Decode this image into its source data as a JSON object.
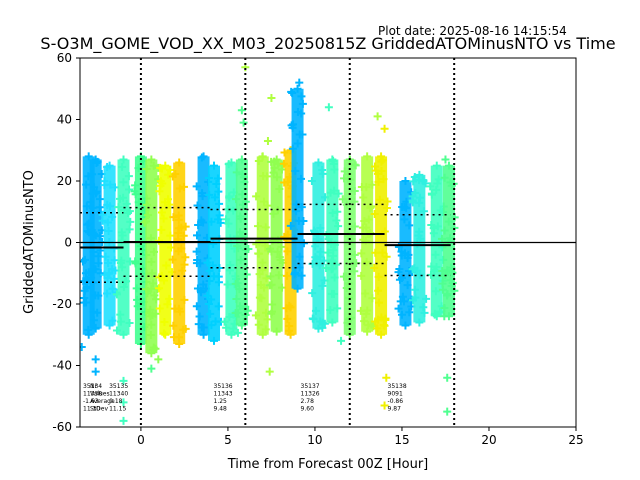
{
  "figure": {
    "plot_date": "Plot date: 2025-08-16 14:15:54",
    "title": "S-O3M_GOME_VOD_XX_M03_20250815Z GriddedATOMinusNTO vs Time",
    "xlabel": "Time from Forecast 00Z [Hour]",
    "ylabel": "GriddedATOMinusNTO"
  },
  "stats_header": [
    "Nr",
    "Values",
    "Average",
    "StDev"
  ],
  "chart_data": {
    "type": "scatter",
    "marker": "+",
    "title": "S-O3M_GOME_VOD_XX_M03_20250815Z GriddedATOMinusNTO vs Time",
    "xlabel": "Time from Forecast 00Z [Hour]",
    "ylabel": "GriddedATOMinusNTO",
    "xlim": [
      -3.5,
      25
    ],
    "ylim": [
      -60,
      60
    ],
    "xticks": [
      0,
      5,
      10,
      15,
      20,
      25
    ],
    "yticks": [
      -60,
      -40,
      -20,
      0,
      20,
      40,
      60
    ],
    "grid": false,
    "zero_line": 0,
    "vlines_dotted": [
      0,
      6,
      12,
      18
    ],
    "orbits": [
      {
        "x": -3.5,
        "nr": "35134",
        "values": "11338",
        "average": "-1.63",
        "stdev": "11.30",
        "mean_x": [
          -3.5,
          -1.0
        ],
        "mean": -1.63
      },
      {
        "x": -2.0,
        "nr": "35135",
        "values": "11340",
        "average": "0.18",
        "stdev": "11.15",
        "mean_x": [
          -1.0,
          4.0
        ],
        "mean": 0.18
      },
      {
        "x": 4.0,
        "nr": "35136",
        "values": "11343",
        "average": "1.25",
        "stdev": "9.48",
        "mean_x": [
          4.0,
          9.0
        ],
        "mean": 1.25
      },
      {
        "x": 9.0,
        "nr": "35137",
        "values": "11326",
        "average": "2.78",
        "stdev": "9.60",
        "mean_x": [
          9.0,
          14.0
        ],
        "mean": 2.78
      },
      {
        "x": 14.0,
        "nr": "35138",
        "values": "9091",
        "average": "-0.86",
        "stdev": "9.87",
        "mean_x": [
          14.0,
          17.8
        ],
        "mean": -0.86
      }
    ],
    "clusters": [
      {
        "x": -3.0,
        "low": -30,
        "high": 28,
        "color": "#00b4ff"
      },
      {
        "x": -2.6,
        "low": -28,
        "high": 27,
        "color": "#00b4ff"
      },
      {
        "x": -1.8,
        "low": -27,
        "high": 25,
        "color": "#20e0ff"
      },
      {
        "x": -1.0,
        "low": -30,
        "high": 27,
        "color": "#40ffc0"
      },
      {
        "x": 0.0,
        "low": -33,
        "high": 28,
        "color": "#40ff90"
      },
      {
        "x": 0.6,
        "low": -36,
        "high": 27,
        "color": "#90ff50"
      },
      {
        "x": 1.4,
        "low": -30,
        "high": 25,
        "color": "#f0ff00"
      },
      {
        "x": 2.2,
        "low": -33,
        "high": 26,
        "color": "#ffd000"
      },
      {
        "x": 3.6,
        "low": -30,
        "high": 28,
        "color": "#00b4ff"
      },
      {
        "x": 4.2,
        "low": -32,
        "high": 25,
        "color": "#00d0ff"
      },
      {
        "x": 5.2,
        "low": -30,
        "high": 26,
        "color": "#40ffc0"
      },
      {
        "x": 5.8,
        "low": -27,
        "high": 27,
        "color": "#50ff90"
      },
      {
        "x": 7.0,
        "low": -30,
        "high": 28,
        "color": "#b0ff40"
      },
      {
        "x": 7.8,
        "low": -29,
        "high": 27,
        "color": "#90ff50"
      },
      {
        "x": 8.6,
        "low": -30,
        "high": 30,
        "color": "#ffd000"
      },
      {
        "x": 9.0,
        "low": -15,
        "high": 50,
        "color": "#00b4ff"
      },
      {
        "x": 10.2,
        "low": -28,
        "high": 26,
        "color": "#30f0e0"
      },
      {
        "x": 11.0,
        "low": -26,
        "high": 27,
        "color": "#40ffc0"
      },
      {
        "x": 12.0,
        "low": -30,
        "high": 27,
        "color": "#80ff70"
      },
      {
        "x": 13.0,
        "low": -29,
        "high": 28,
        "color": "#b0ff40"
      },
      {
        "x": 13.8,
        "low": -30,
        "high": 28,
        "color": "#f0f000"
      },
      {
        "x": 15.2,
        "low": -27,
        "high": 20,
        "color": "#00b4ff"
      },
      {
        "x": 16.0,
        "low": -26,
        "high": 22,
        "color": "#30f0e0"
      },
      {
        "x": 17.0,
        "low": -24,
        "high": 25,
        "color": "#40ffc0"
      },
      {
        "x": 17.7,
        "low": -24,
        "high": 25,
        "color": "#50ff90"
      }
    ],
    "outliers": [
      {
        "x": 6.0,
        "y": 57,
        "color": "#b0ff40"
      },
      {
        "x": 5.8,
        "y": 43,
        "color": "#50ff90"
      },
      {
        "x": 5.9,
        "y": 39,
        "color": "#50ff90"
      },
      {
        "x": 7.5,
        "y": 47,
        "color": "#b0ff40"
      },
      {
        "x": 7.3,
        "y": 33,
        "color": "#b0ff40"
      },
      {
        "x": 9.1,
        "y": 52,
        "color": "#00b4ff"
      },
      {
        "x": 10.8,
        "y": 44,
        "color": "#40ffc0"
      },
      {
        "x": 13.6,
        "y": 41,
        "color": "#b0ff40"
      },
      {
        "x": 14.0,
        "y": 37,
        "color": "#f0f000"
      },
      {
        "x": 17.5,
        "y": 27,
        "color": "#50ff90"
      },
      {
        "x": 7.4,
        "y": -42,
        "color": "#b0ff40"
      },
      {
        "x": 0.6,
        "y": -41,
        "color": "#50ff90"
      },
      {
        "x": 14.0,
        "y": -53,
        "color": "#f0f000"
      },
      {
        "x": 17.6,
        "y": -55,
        "color": "#50ff90"
      },
      {
        "x": -3.4,
        "y": -34,
        "color": "#00b4ff"
      },
      {
        "x": 17.6,
        "y": -44,
        "color": "#50ff90"
      },
      {
        "x": 11.5,
        "y": -32,
        "color": "#40ffc0"
      },
      {
        "x": 14.1,
        "y": -44,
        "color": "#f0f000"
      },
      {
        "x": 1.0,
        "y": -38,
        "color": "#90ff50"
      },
      {
        "x": -2.6,
        "y": -42,
        "color": "#00b4ff"
      },
      {
        "x": -2.6,
        "y": -38,
        "color": "#00b4ff"
      },
      {
        "x": -1.0,
        "y": -45,
        "color": "#40ffc0"
      },
      {
        "x": -1.0,
        "y": -52,
        "color": "#40ffc0"
      },
      {
        "x": -1.0,
        "y": -58,
        "color": "#40ffc0"
      }
    ]
  },
  "colors": {
    "axis": "#000000",
    "mean_line": "#000000",
    "dotted_line": "#000000"
  }
}
